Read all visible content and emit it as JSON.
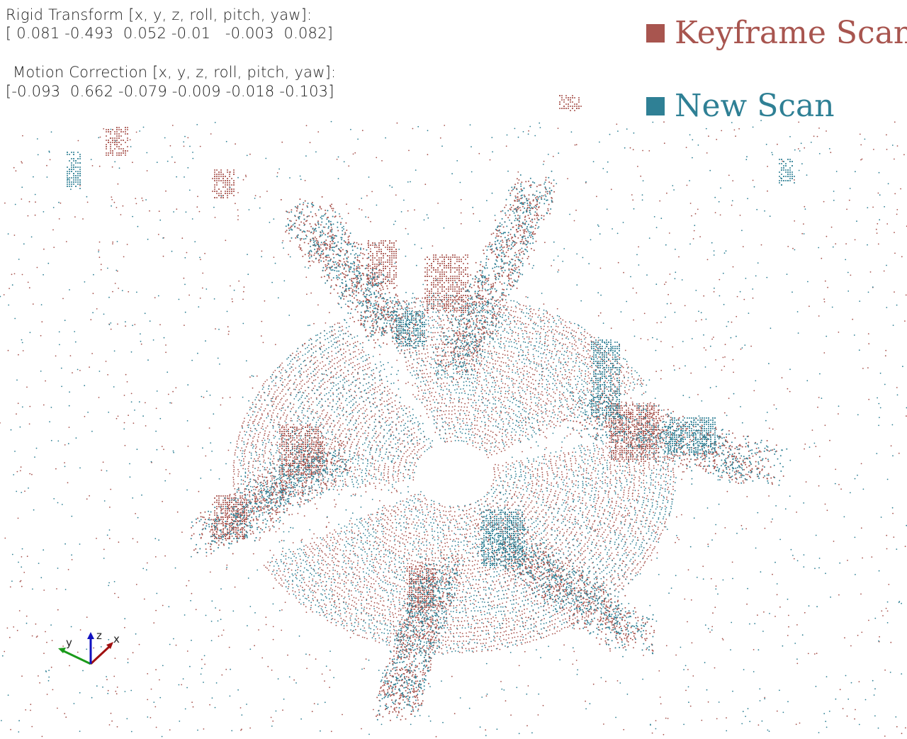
{
  "overlay": {
    "rigid_transform_title": "Rigid Transform [x, y, z, roll, pitch, yaw]:",
    "rigid_transform_values": "[ 0.081 -0.493  0.052 -0.01   -0.003  0.082]",
    "motion_correction_title": "Motion Correction [x, y, z, roll, pitch, yaw]:",
    "motion_correction_values": "[-0.093  0.662 -0.079 -0.009 -0.018 -0.103]"
  },
  "legend": {
    "keyframe": {
      "label": "Keyframe Scan",
      "color": "#a8554f"
    },
    "new": {
      "label": "New Scan",
      "color": "#2f8095"
    }
  },
  "axes_gizmo": {
    "x_label": "x",
    "y_label": "y",
    "z_label": "z",
    "x_color": "#a01010",
    "y_color": "#1a9a1a",
    "z_color": "#1010c0"
  },
  "point_cloud": {
    "keyframe_color": "#a8554f",
    "new_color": "#2f8095"
  }
}
